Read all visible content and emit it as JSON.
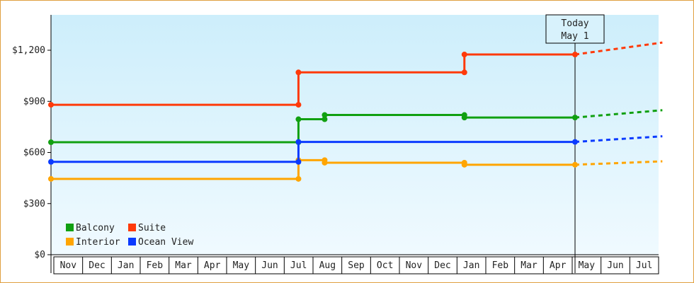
{
  "chart_data": {
    "type": "line",
    "step": true,
    "y_ticks": [
      "$0",
      "$300",
      "$600",
      "$900",
      "$1,200"
    ],
    "y_tick_values": [
      0,
      300,
      600,
      900,
      1200
    ],
    "ylim": [
      0,
      1200
    ],
    "x_ticks": [
      "Nov",
      "Dec",
      "Jan",
      "Feb",
      "Mar",
      "Apr",
      "May",
      "Jun",
      "Jul",
      "Aug",
      "Sep",
      "Oct",
      "Nov",
      "Dec",
      "Jan",
      "Feb",
      "Mar",
      "Apr",
      "May",
      "Jun",
      "Jul"
    ],
    "today_marker": {
      "line1": "Today",
      "line2": "May 1",
      "x": 18
    },
    "legend": {
      "placement": "bottom-left"
    },
    "colors": {
      "Balcony": "#11a011",
      "Suite": "#ff3a0a",
      "Interior": "#ffa500",
      "Ocean View": "#0a3aff"
    },
    "series": [
      {
        "name": "Balcony",
        "points": [
          [
            0,
            660
          ],
          [
            8.5,
            660
          ],
          [
            8.5,
            795
          ],
          [
            9.4,
            795
          ],
          [
            9.4,
            820
          ],
          [
            14.2,
            820
          ],
          [
            14.2,
            805
          ],
          [
            18,
            805
          ]
        ],
        "forecast": [
          [
            18,
            805
          ],
          [
            21,
            848
          ]
        ]
      },
      {
        "name": "Suite",
        "points": [
          [
            0,
            880
          ],
          [
            8.5,
            880
          ],
          [
            8.5,
            1070
          ],
          [
            14.2,
            1070
          ],
          [
            14.2,
            1175
          ],
          [
            18,
            1175
          ]
        ],
        "forecast": [
          [
            18,
            1175
          ],
          [
            21,
            1245
          ]
        ]
      },
      {
        "name": "Interior",
        "points": [
          [
            0,
            445
          ],
          [
            8.5,
            445
          ],
          [
            8.5,
            555
          ],
          [
            9.4,
            555
          ],
          [
            9.4,
            540
          ],
          [
            14.2,
            540
          ],
          [
            14.2,
            528
          ],
          [
            18,
            528
          ]
        ],
        "forecast": [
          [
            18,
            528
          ],
          [
            21,
            548
          ]
        ]
      },
      {
        "name": "Ocean View",
        "points": [
          [
            0,
            545
          ],
          [
            8.5,
            545
          ],
          [
            8.5,
            662
          ],
          [
            18,
            662
          ]
        ],
        "forecast": [
          [
            18,
            662
          ],
          [
            21,
            695
          ]
        ]
      }
    ]
  }
}
